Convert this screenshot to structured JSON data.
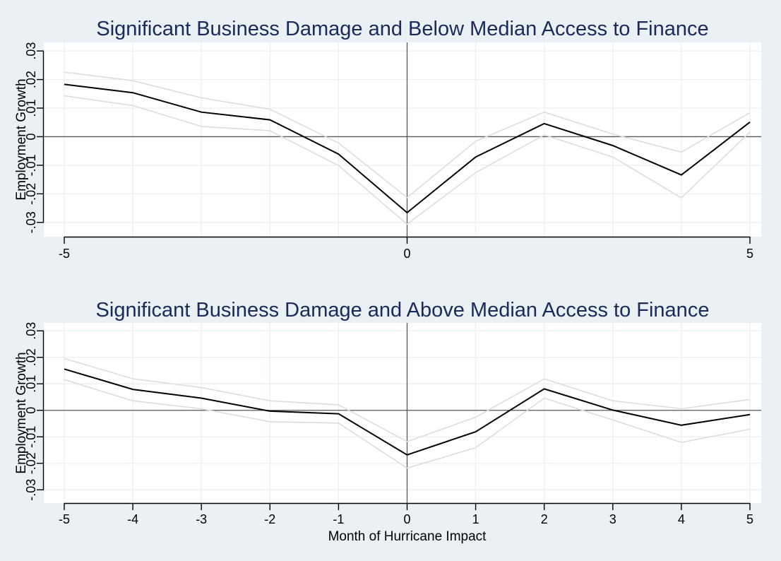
{
  "chart_data": [
    {
      "type": "line",
      "title": "Significant Business Damage and Below Median Access to Finance",
      "ylabel": "Employment Growth",
      "xlabel": "",
      "x": [
        -5,
        -4,
        -3,
        -2,
        -1,
        0,
        1,
        2,
        3,
        4,
        5
      ],
      "xticks": [
        "-5",
        "0",
        "5"
      ],
      "xtick_values": [
        -5,
        0,
        5
      ],
      "yticks": [
        "-.03",
        "-.02",
        "-.01",
        "0",
        ".01",
        ".02",
        ".03"
      ],
      "ytick_values": [
        -0.03,
        -0.02,
        -0.01,
        0,
        0.01,
        0.02,
        0.03
      ],
      "ylim": [
        -0.035,
        0.033
      ],
      "xlim": [
        -5,
        5
      ],
      "grid": true,
      "reference_lines": {
        "x": 0,
        "y": 0
      },
      "series": [
        {
          "role": "estimate",
          "values": [
            0.0183,
            0.0154,
            0.0086,
            0.0059,
            -0.0061,
            -0.0266,
            -0.0071,
            0.0046,
            -0.0031,
            -0.0134,
            0.0051
          ]
        },
        {
          "role": "upper",
          "values": [
            0.0226,
            0.0196,
            0.0136,
            0.0096,
            -0.0022,
            -0.0213,
            -0.0016,
            0.0086,
            0.0009,
            -0.0054,
            0.0084
          ]
        },
        {
          "role": "lower",
          "values": [
            0.0143,
            0.0109,
            0.0036,
            0.0021,
            -0.0101,
            -0.0306,
            -0.0126,
            0.0006,
            -0.0071,
            -0.0214,
            0.0016
          ]
        }
      ],
      "colors": {
        "estimate": "#000000",
        "band": "#dddddd",
        "reference": "#5a5a5a",
        "grid": "#ffffff",
        "title": "#1a2a5a"
      }
    },
    {
      "type": "line",
      "title": "Significant Business Damage and Above Median Access to Finance",
      "ylabel": "Employment Growth",
      "xlabel": "Month of Hurricane Impact",
      "x": [
        -5,
        -4,
        -3,
        -2,
        -1,
        0,
        1,
        2,
        3,
        4,
        5
      ],
      "xticks": [
        "-5",
        "-4",
        "-3",
        "-2",
        "-1",
        "0",
        "1",
        "2",
        "3",
        "4",
        "5"
      ],
      "xtick_values": [
        -5,
        -4,
        -3,
        -2,
        -1,
        0,
        1,
        2,
        3,
        4,
        5
      ],
      "yticks": [
        "-.03",
        "-.02",
        "-.01",
        "0",
        ".01",
        ".02",
        ".03"
      ],
      "ytick_values": [
        -0.03,
        -0.02,
        -0.01,
        0,
        0.01,
        0.02,
        0.03
      ],
      "ylim": [
        -0.035,
        0.033
      ],
      "xlim": [
        -5,
        5
      ],
      "grid": true,
      "reference_lines": {
        "x": 0,
        "y": 0
      },
      "series": [
        {
          "role": "estimate",
          "values": [
            0.0156,
            0.0079,
            0.0046,
            -0.0003,
            -0.0013,
            -0.0168,
            -0.0081,
            0.0081,
            0.0001,
            -0.0056,
            -0.0016
          ]
        },
        {
          "role": "upper",
          "values": [
            0.0196,
            0.0119,
            0.0086,
            0.0036,
            0.0021,
            -0.0118,
            -0.0026,
            0.0119,
            0.0036,
            0.0006,
            0.0041
          ]
        },
        {
          "role": "lower",
          "values": [
            0.0116,
            0.0036,
            0.0006,
            -0.0043,
            -0.0048,
            -0.0218,
            -0.0141,
            0.0046,
            -0.0036,
            -0.0121,
            -0.0071
          ]
        }
      ],
      "colors": {
        "estimate": "#000000",
        "band": "#dddddd",
        "reference": "#5a5a5a",
        "grid": "#ffffff",
        "title": "#1a2a5a"
      }
    }
  ]
}
